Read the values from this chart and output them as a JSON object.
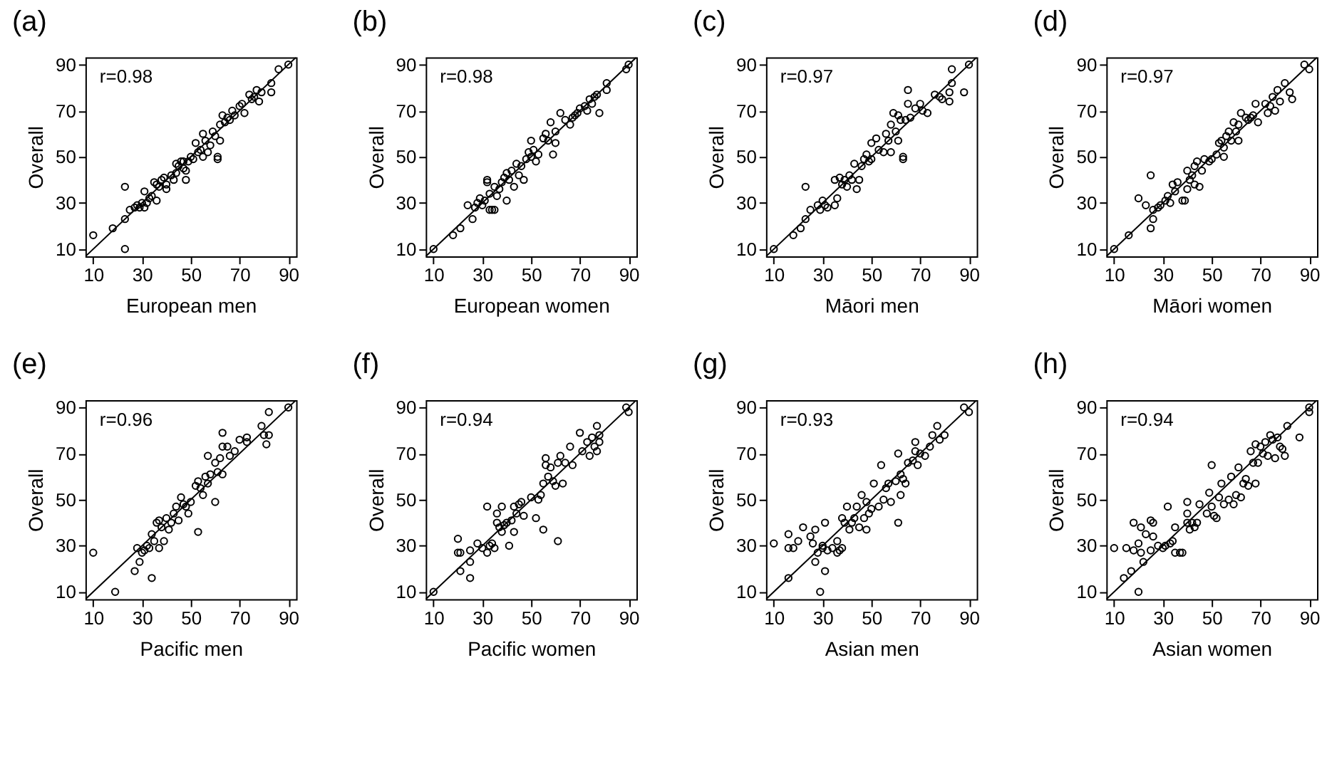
{
  "chart_data": [
    {
      "type": "scatter",
      "title": "(a)",
      "xlabel": "European men",
      "ylabel": "Overall",
      "annotations": [
        "r=0.98"
      ],
      "xlim": [
        6.8,
        93.2
      ],
      "ylim": [
        6.8,
        93.2
      ],
      "xticks": [
        10,
        30,
        50,
        70,
        90
      ],
      "yticks": [
        10,
        30,
        50,
        70,
        90
      ],
      "series": [
        {
          "type": "scatter",
          "marker": "circle",
          "color": "#000000",
          "x": [
            10,
            18,
            23,
            23,
            23,
            25,
            27,
            28,
            29,
            30,
            31,
            31,
            32,
            33,
            34,
            35,
            36,
            37,
            38,
            39,
            40,
            40,
            42,
            43,
            44,
            45,
            46,
            47,
            48,
            48,
            49,
            50,
            51,
            52,
            54,
            55,
            55,
            56,
            57,
            58,
            59,
            60,
            61,
            61,
            62,
            62,
            63,
            64,
            65,
            66,
            67,
            68,
            70,
            71,
            72,
            74,
            75,
            76,
            77,
            78,
            79,
            83,
            83,
            86,
            90,
            53,
            44,
            47,
            36
          ],
          "values": [
            16,
            19,
            37,
            23,
            10,
            27,
            28,
            29,
            28,
            30,
            35,
            28,
            30,
            32,
            33,
            39,
            31,
            37,
            40,
            41,
            38,
            36,
            42,
            40,
            43,
            46,
            48,
            45,
            44,
            40,
            48,
            50,
            49,
            56,
            53,
            60,
            50,
            57,
            52,
            55,
            61,
            59,
            50,
            49,
            57,
            64,
            68,
            65,
            67,
            66,
            70,
            68,
            72,
            73,
            69,
            77,
            75,
            76,
            79,
            74,
            78,
            82,
            78,
            88,
            90,
            52,
            47,
            48,
            38
          ]
        },
        {
          "type": "line",
          "color": "#000000",
          "x": [
            6.8,
            93.2
          ],
          "values": [
            6.8,
            93.2
          ]
        }
      ]
    },
    {
      "type": "scatter",
      "title": "(b)",
      "xlabel": "European women",
      "ylabel": "Overall",
      "annotations": [
        "r=0.98"
      ],
      "xlim": [
        6.8,
        93.2
      ],
      "ylim": [
        6.8,
        93.2
      ],
      "xticks": [
        10,
        30,
        50,
        70,
        90
      ],
      "yticks": [
        10,
        30,
        50,
        70,
        90
      ],
      "series": [
        {
          "type": "scatter",
          "marker": "circle",
          "color": "#000000",
          "x": [
            10,
            18,
            21,
            24,
            26,
            27,
            28,
            29,
            30,
            31,
            32,
            32,
            33,
            33,
            34,
            35,
            35,
            36,
            37,
            38,
            39,
            40,
            40,
            41,
            42,
            43,
            44,
            45,
            46,
            47,
            48,
            49,
            50,
            50,
            51,
            52,
            53,
            55,
            56,
            57,
            58,
            59,
            60,
            60,
            62,
            64,
            66,
            67,
            68,
            69,
            70,
            72,
            73,
            74,
            75,
            76,
            77,
            78,
            81,
            81,
            89,
            90
          ],
          "values": [
            10,
            16,
            19,
            29,
            23,
            28,
            30,
            32,
            29,
            31,
            39,
            40,
            34,
            27,
            27,
            27,
            37,
            33,
            36,
            39,
            41,
            31,
            43,
            40,
            44,
            37,
            47,
            42,
            46,
            40,
            49,
            52,
            57,
            50,
            53,
            48,
            51,
            58,
            60,
            57,
            65,
            51,
            56,
            61,
            69,
            66,
            64,
            67,
            68,
            69,
            71,
            72,
            70,
            75,
            73,
            76,
            77,
            69,
            79,
            82,
            88,
            90
          ]
        },
        {
          "type": "line",
          "color": "#000000",
          "x": [
            6.8,
            93.2
          ],
          "values": [
            6.8,
            93.2
          ]
        }
      ]
    },
    {
      "type": "scatter",
      "title": "(c)",
      "xlabel": "Māori men",
      "ylabel": "Overall",
      "annotations": [
        "r=0.97"
      ],
      "xlim": [
        6.8,
        93.2
      ],
      "ylim": [
        6.8,
        93.2
      ],
      "xticks": [
        10,
        30,
        50,
        70,
        90
      ],
      "yticks": [
        10,
        30,
        50,
        70,
        90
      ],
      "series": [
        {
          "type": "scatter",
          "marker": "circle",
          "color": "#000000",
          "x": [
            10,
            18,
            21,
            23,
            23,
            25,
            28,
            29,
            30,
            31,
            32,
            35,
            35,
            36,
            37,
            38,
            39,
            40,
            41,
            42,
            43,
            44,
            45,
            46,
            47,
            48,
            49,
            50,
            50,
            52,
            53,
            55,
            56,
            57,
            58,
            58,
            59,
            60,
            61,
            61,
            62,
            63,
            63,
            64,
            65,
            65,
            66,
            68,
            70,
            71,
            73,
            76,
            78,
            79,
            82,
            82,
            83,
            83,
            88,
            90
          ],
          "values": [
            10,
            16,
            19,
            37,
            23,
            27,
            29,
            27,
            31,
            29,
            28,
            40,
            29,
            32,
            41,
            38,
            40,
            37,
            42,
            40,
            47,
            36,
            40,
            46,
            49,
            51,
            48,
            49,
            56,
            58,
            53,
            52,
            60,
            57,
            64,
            52,
            69,
            61,
            57,
            68,
            66,
            50,
            49,
            66,
            79,
            73,
            67,
            71,
            73,
            70,
            69,
            77,
            76,
            75,
            78,
            74,
            88,
            82,
            78,
            90
          ]
        },
        {
          "type": "line",
          "color": "#000000",
          "x": [
            6.8,
            93.2
          ],
          "values": [
            6.8,
            93.2
          ]
        }
      ]
    },
    {
      "type": "scatter",
      "title": "(d)",
      "xlabel": "Māori women",
      "ylabel": "Overall",
      "annotations": [
        "r=0.97"
      ],
      "xlim": [
        6.8,
        93.2
      ],
      "ylim": [
        6.8,
        93.2
      ],
      "xticks": [
        10,
        30,
        50,
        70,
        90
      ],
      "yticks": [
        10,
        30,
        50,
        70,
        90
      ],
      "series": [
        {
          "type": "scatter",
          "marker": "circle",
          "color": "#000000",
          "x": [
            10,
            16,
            20,
            23,
            25,
            25,
            26,
            26,
            28,
            29,
            31,
            32,
            33,
            34,
            35,
            36,
            38,
            39,
            40,
            40,
            41,
            42,
            43,
            43,
            44,
            45,
            46,
            47,
            49,
            50,
            52,
            53,
            54,
            55,
            55,
            56,
            57,
            58,
            59,
            60,
            61,
            61,
            62,
            64,
            65,
            66,
            67,
            68,
            69,
            72,
            73,
            74,
            75,
            76,
            77,
            78,
            80,
            82,
            83,
            88,
            90
          ],
          "values": [
            10,
            16,
            32,
            29,
            42,
            19,
            23,
            27,
            28,
            29,
            31,
            33,
            30,
            38,
            35,
            39,
            31,
            31,
            44,
            36,
            40,
            42,
            46,
            38,
            48,
            37,
            44,
            49,
            48,
            49,
            51,
            56,
            57,
            50,
            54,
            59,
            61,
            57,
            65,
            61,
            57,
            64,
            69,
            67,
            66,
            67,
            68,
            73,
            65,
            73,
            69,
            72,
            76,
            70,
            79,
            74,
            82,
            78,
            75,
            90,
            88
          ]
        },
        {
          "type": "line",
          "color": "#000000",
          "x": [
            6.8,
            93.2
          ],
          "values": [
            6.8,
            93.2
          ]
        }
      ]
    },
    {
      "type": "scatter",
      "title": "(e)",
      "xlabel": "Pacific men",
      "ylabel": "Overall",
      "annotations": [
        "r=0.96"
      ],
      "xlim": [
        6.8,
        93.2
      ],
      "ylim": [
        6.8,
        93.2
      ],
      "xticks": [
        10,
        30,
        50,
        70,
        90
      ],
      "yticks": [
        10,
        30,
        50,
        70,
        90
      ],
      "series": [
        {
          "type": "scatter",
          "marker": "circle",
          "color": "#000000",
          "x": [
            10,
            19,
            27,
            28,
            29,
            30,
            31,
            32,
            33,
            34,
            34,
            35,
            36,
            37,
            37,
            38,
            39,
            40,
            41,
            42,
            43,
            44,
            45,
            46,
            47,
            48,
            49,
            50,
            52,
            53,
            53,
            54,
            55,
            56,
            57,
            57,
            58,
            60,
            60,
            61,
            62,
            63,
            63,
            63,
            65,
            66,
            68,
            70,
            73,
            73,
            79,
            80,
            81,
            82,
            82,
            90
          ],
          "values": [
            27,
            10,
            19,
            29,
            23,
            27,
            28,
            30,
            29,
            16,
            35,
            32,
            40,
            41,
            29,
            38,
            32,
            42,
            37,
            40,
            44,
            47,
            41,
            51,
            48,
            47,
            44,
            49,
            56,
            36,
            58,
            55,
            52,
            60,
            57,
            69,
            61,
            49,
            66,
            62,
            68,
            79,
            73,
            61,
            73,
            69,
            71,
            76,
            77,
            75,
            82,
            78,
            74,
            88,
            78,
            90
          ]
        },
        {
          "type": "line",
          "color": "#000000",
          "x": [
            6.8,
            93.2
          ],
          "values": [
            6.8,
            93.2
          ]
        }
      ]
    },
    {
      "type": "scatter",
      "title": "(f)",
      "xlabel": "Pacific women",
      "ylabel": "Overall",
      "annotations": [
        "r=0.94"
      ],
      "xlim": [
        6.8,
        93.2
      ],
      "ylim": [
        6.8,
        93.2
      ],
      "xticks": [
        10,
        30,
        50,
        70,
        90
      ],
      "yticks": [
        10,
        30,
        50,
        70,
        90
      ],
      "series": [
        {
          "type": "scatter",
          "marker": "circle",
          "color": "#000000",
          "x": [
            10,
            20,
            20,
            21,
            21,
            25,
            25,
            25,
            28,
            30,
            32,
            32,
            33,
            34,
            35,
            36,
            36,
            37,
            38,
            38,
            39,
            40,
            41,
            42,
            43,
            43,
            44,
            45,
            46,
            47,
            50,
            52,
            53,
            54,
            55,
            55,
            56,
            56,
            57,
            58,
            59,
            60,
            61,
            61,
            62,
            63,
            64,
            66,
            67,
            70,
            71,
            73,
            74,
            75,
            76,
            77,
            77,
            78,
            78,
            89,
            90
          ],
          "values": [
            10,
            33,
            27,
            19,
            27,
            28,
            23,
            16,
            31,
            29,
            47,
            27,
            30,
            31,
            29,
            40,
            44,
            38,
            47,
            36,
            39,
            40,
            30,
            41,
            47,
            36,
            44,
            48,
            49,
            43,
            51,
            42,
            50,
            52,
            37,
            57,
            68,
            65,
            60,
            64,
            58,
            56,
            32,
            66,
            69,
            57,
            66,
            73,
            65,
            79,
            71,
            75,
            69,
            77,
            73,
            82,
            71,
            75,
            78,
            90,
            88
          ]
        },
        {
          "type": "line",
          "color": "#000000",
          "x": [
            6.8,
            93.2
          ],
          "values": [
            6.8,
            93.2
          ]
        }
      ]
    },
    {
      "type": "scatter",
      "title": "(g)",
      "xlabel": "Asian men",
      "ylabel": "Overall",
      "annotations": [
        "r=0.93"
      ],
      "xlim": [
        6.8,
        93.2
      ],
      "ylim": [
        6.8,
        93.2
      ],
      "xticks": [
        10,
        30,
        50,
        70,
        90
      ],
      "yticks": [
        10,
        30,
        50,
        70,
        90
      ],
      "series": [
        {
          "type": "scatter",
          "marker": "circle",
          "color": "#000000",
          "x": [
            10,
            16,
            16,
            16,
            18,
            20,
            22,
            25,
            26,
            27,
            27,
            28,
            29,
            30,
            30,
            31,
            31,
            32,
            34,
            36,
            36,
            37,
            38,
            38,
            39,
            40,
            41,
            42,
            43,
            44,
            45,
            46,
            47,
            48,
            48,
            49,
            50,
            51,
            53,
            54,
            55,
            56,
            57,
            58,
            60,
            61,
            61,
            62,
            62,
            63,
            64,
            65,
            67,
            68,
            68,
            69,
            70,
            72,
            74,
            75,
            77,
            78,
            80,
            88,
            90
          ],
          "values": [
            31,
            35,
            29,
            16,
            29,
            32,
            38,
            34,
            31,
            37,
            23,
            27,
            10,
            29,
            30,
            19,
            40,
            28,
            29,
            32,
            27,
            28,
            42,
            29,
            40,
            47,
            37,
            40,
            42,
            47,
            38,
            52,
            42,
            49,
            37,
            44,
            46,
            57,
            47,
            65,
            50,
            55,
            57,
            49,
            58,
            70,
            40,
            61,
            52,
            59,
            57,
            66,
            67,
            71,
            75,
            65,
            70,
            69,
            73,
            78,
            82,
            76,
            78,
            90,
            88
          ]
        },
        {
          "type": "line",
          "color": "#000000",
          "x": [
            6.8,
            93.2
          ],
          "values": [
            6.8,
            93.2
          ]
        }
      ]
    },
    {
      "type": "scatter",
      "title": "(h)",
      "xlabel": "Asian women",
      "ylabel": "Overall",
      "annotations": [
        "r=0.94"
      ],
      "xlim": [
        6.8,
        93.2
      ],
      "ylim": [
        6.8,
        93.2
      ],
      "xticks": [
        10,
        30,
        50,
        70,
        90
      ],
      "yticks": [
        10,
        30,
        50,
        70,
        90
      ],
      "series": [
        {
          "type": "scatter",
          "marker": "circle",
          "color": "#000000",
          "x": [
            10,
            14,
            15,
            17,
            18,
            18,
            20,
            20,
            21,
            21,
            22,
            23,
            25,
            25,
            26,
            26,
            28,
            30,
            31,
            32,
            33,
            34,
            35,
            35,
            37,
            38,
            40,
            40,
            40,
            41,
            42,
            43,
            44,
            45,
            48,
            49,
            50,
            50,
            51,
            52,
            53,
            54,
            55,
            57,
            58,
            59,
            60,
            61,
            62,
            63,
            64,
            65,
            66,
            67,
            68,
            68,
            69,
            70,
            71,
            72,
            73,
            74,
            75,
            76,
            77,
            78,
            79,
            80,
            81,
            86,
            90,
            90
          ],
          "values": [
            29,
            16,
            29,
            19,
            28,
            40,
            10,
            31,
            38,
            27,
            23,
            35,
            41,
            28,
            34,
            40,
            30,
            29,
            30,
            47,
            31,
            32,
            38,
            27,
            27,
            27,
            49,
            44,
            40,
            37,
            40,
            38,
            40,
            48,
            44,
            53,
            65,
            47,
            43,
            42,
            51,
            57,
            48,
            50,
            60,
            48,
            52,
            64,
            51,
            57,
            59,
            56,
            71,
            66,
            74,
            57,
            66,
            73,
            70,
            75,
            69,
            78,
            76,
            68,
            77,
            73,
            72,
            69,
            82,
            77,
            90,
            88
          ]
        },
        {
          "type": "line",
          "color": "#000000",
          "x": [
            6.8,
            93.2
          ],
          "values": [
            6.8,
            93.2
          ]
        }
      ]
    }
  ]
}
